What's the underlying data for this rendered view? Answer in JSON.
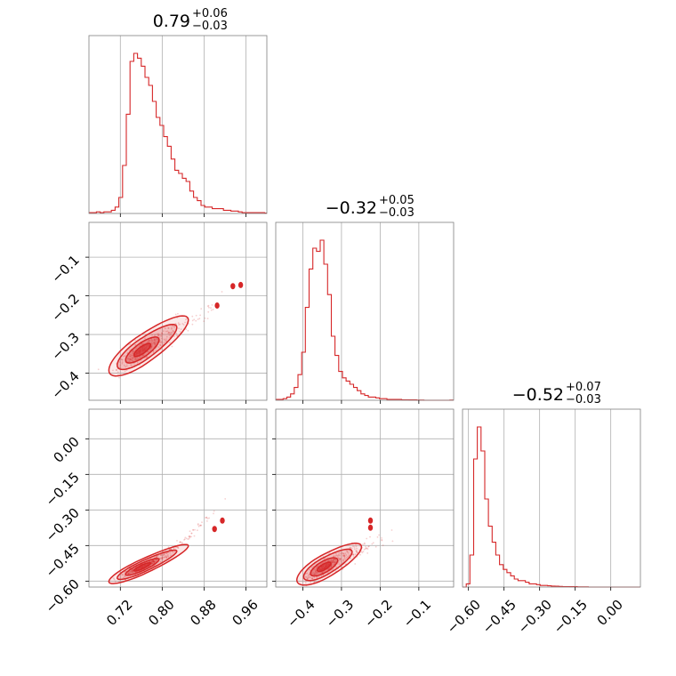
{
  "chart_data": {
    "type": "corner",
    "color": "#d62728",
    "parameters": [
      {
        "title_median": "0.79",
        "title_plus": "+0.06",
        "title_minus": "−0.03",
        "range": [
          0.66,
          1.0
        ]
      },
      {
        "title_median": "−0.32",
        "title_plus": "+0.05",
        "title_minus": "−0.03",
        "range": [
          -0.47,
          -0.01
        ]
      },
      {
        "title_median": "−0.52",
        "title_plus": "+0.07",
        "title_minus": "−0.03",
        "range": [
          -0.625,
          0.125
        ]
      }
    ],
    "ticks": [
      {
        "values": [
          0.72,
          0.8,
          0.88,
          0.96
        ],
        "labels": [
          "0.72",
          "0.80",
          "0.88",
          "0.96"
        ]
      },
      {
        "values": [
          -0.4,
          -0.3,
          -0.2,
          -0.1
        ],
        "labels": [
          "−0.4",
          "−0.3",
          "−0.2",
          "−0.1"
        ]
      },
      {
        "values": [
          -0.6,
          -0.45,
          -0.3,
          -0.15,
          0.0
        ],
        "labels": [
          "−0.60",
          "−0.45",
          "−0.30",
          "−0.15",
          "0.00"
        ]
      }
    ],
    "hist_1d": [
      {
        "edges_start": 0.66,
        "bin_width": 0.00714,
        "counts": [
          0.5,
          0.5,
          1,
          0.5,
          1,
          1,
          2,
          4,
          10,
          30,
          62,
          95,
          100,
          97,
          92,
          85,
          80,
          70,
          60,
          55,
          48,
          42,
          34,
          27,
          25,
          22,
          20,
          14,
          10,
          8,
          5,
          4,
          4,
          3,
          3,
          3,
          2,
          2,
          1.5,
          1.5,
          1,
          0.5,
          0.5,
          0.5,
          0.5,
          0.5,
          0.5,
          0.2
        ]
      },
      {
        "edges_start": -0.47,
        "bin_width": 0.00958,
        "counts": [
          0.5,
          0.5,
          1,
          2,
          4,
          8,
          16,
          30,
          58,
          82,
          95,
          93,
          100,
          85,
          66,
          40,
          28,
          18,
          14,
          12,
          10,
          8,
          6,
          4,
          3,
          2,
          2,
          1.5,
          1,
          1,
          0.5,
          0.5,
          0.5,
          0.5,
          0.3,
          0.3,
          0.2,
          0.2,
          0.1,
          0.1,
          0,
          0,
          0,
          0,
          0,
          0,
          0,
          0.1
        ]
      },
      {
        "edges_start": -0.625,
        "bin_width": 0.0156,
        "counts": [
          0,
          2,
          20,
          80,
          100,
          85,
          55,
          38,
          28,
          20,
          14,
          11,
          9,
          7,
          5,
          4,
          4,
          3,
          2,
          2,
          1.5,
          1,
          1,
          0.8,
          0.6,
          0.5,
          0.4,
          0.3,
          0.3,
          0.2,
          0.2,
          0.1,
          0.1,
          0.1,
          0,
          0,
          0,
          0,
          0,
          0,
          0,
          0,
          0,
          0,
          0,
          0,
          0,
          0
        ]
      }
    ],
    "correlations": [
      {
        "x_param": 0,
        "y_param": 1,
        "mean": [
          0.762,
          -0.34
        ],
        "sigma": [
          0.02,
          0.021
        ],
        "rho": 0.78,
        "outliers": [
          [
            0.905,
            -0.225
          ],
          [
            0.935,
            -0.175
          ],
          [
            0.95,
            -0.172
          ]
        ]
      },
      {
        "x_param": 0,
        "y_param": 2,
        "mean": [
          0.762,
          -0.54
        ],
        "sigma": [
          0.02,
          0.022
        ],
        "rho": 0.88,
        "outliers": [
          [
            0.915,
            -0.345
          ],
          [
            0.9,
            -0.38
          ]
        ]
      },
      {
        "x_param": 1,
        "y_param": 2,
        "mean": [
          -0.345,
          -0.54
        ],
        "sigma": [
          0.022,
          0.024
        ],
        "rho": 0.72,
        "outliers": [
          [
            -0.225,
            -0.345
          ],
          [
            -0.225,
            -0.375
          ]
        ]
      }
    ],
    "contour_levels_sigma": [
      0.5,
      1.0,
      1.5,
      2.0
    ],
    "grid": true,
    "xlabel": "",
    "ylabel": ""
  }
}
